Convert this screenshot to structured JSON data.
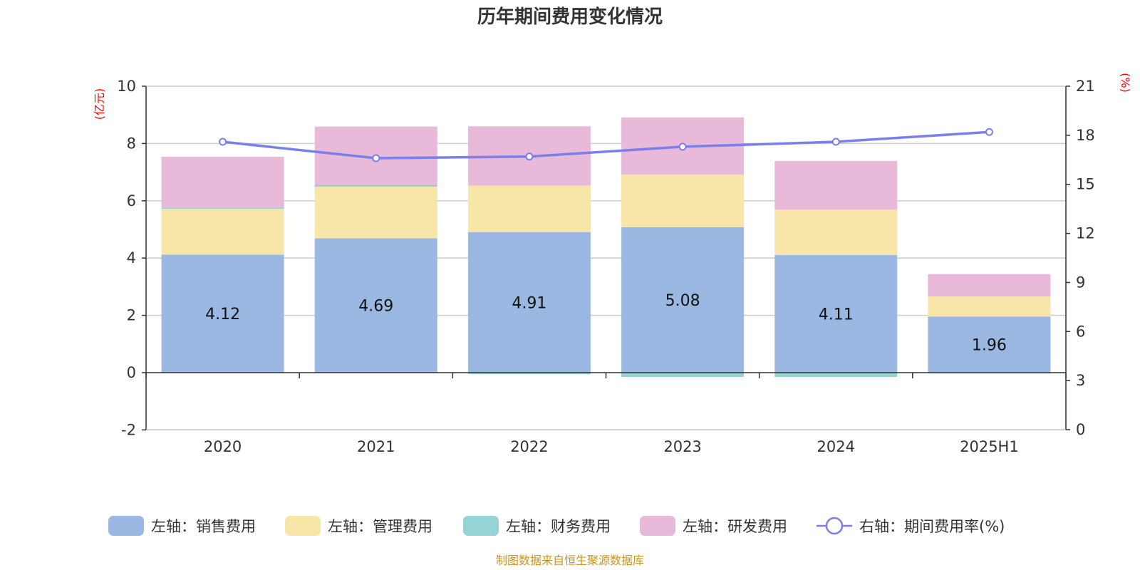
{
  "chart_data": {
    "type": "bar",
    "title": "历年期间费用变化情况",
    "categories": [
      "2020",
      "2021",
      "2022",
      "2023",
      "2024",
      "2025H1"
    ],
    "left_axis": {
      "unit": "(亿元)",
      "min": -2,
      "max": 10,
      "ticks": [
        -2,
        0,
        2,
        4,
        6,
        8,
        10
      ]
    },
    "right_axis": {
      "unit": "(%)",
      "min": 0,
      "max": 21,
      "ticks": [
        0,
        3,
        6,
        9,
        12,
        15,
        18,
        21
      ]
    },
    "series": [
      {
        "name": "左轴：销售费用",
        "type": "bar",
        "axis": "left",
        "color": "#9bb8e2",
        "values": [
          4.12,
          4.69,
          4.91,
          5.08,
          4.11,
          1.96
        ],
        "labels": [
          "4.12",
          "4.69",
          "4.91",
          "5.08",
          "4.11",
          "1.96"
        ]
      },
      {
        "name": "左轴：管理费用",
        "type": "bar",
        "axis": "left",
        "color": "#f8e6a8",
        "values": [
          1.6,
          1.8,
          1.62,
          1.84,
          1.58,
          0.7
        ]
      },
      {
        "name": "左轴：财务费用",
        "type": "bar",
        "axis": "left",
        "color": "#96d3d4",
        "values": [
          0.04,
          0.08,
          -0.05,
          -0.15,
          -0.15,
          -0.03
        ]
      },
      {
        "name": "左轴：研发费用",
        "type": "bar",
        "axis": "left",
        "color": "#e8b9d9",
        "values": [
          1.78,
          2.02,
          2.07,
          1.99,
          1.7,
          0.78
        ]
      },
      {
        "name": "右轴：期间费用率(%)",
        "type": "line",
        "axis": "right",
        "color": "#7b7fec",
        "values": [
          17.6,
          16.6,
          16.7,
          17.3,
          17.6,
          18.2
        ]
      }
    ],
    "grid": true,
    "legend_position": "bottom"
  },
  "source": "制图数据来自恒生聚源数据库"
}
